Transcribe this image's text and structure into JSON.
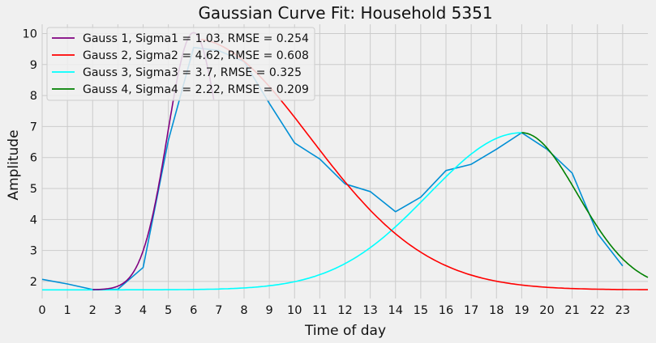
{
  "chart_data": {
    "type": "line",
    "title": "Gaussian Curve Fit: Household 5351",
    "xlabel": "Time of day",
    "ylabel": "Amplitude",
    "xlim": [
      0,
      24
    ],
    "ylim": [
      1.45,
      10.3
    ],
    "xticks": [
      0,
      1,
      2,
      3,
      4,
      5,
      6,
      7,
      8,
      9,
      10,
      11,
      12,
      13,
      14,
      15,
      16,
      17,
      18,
      19,
      20,
      21,
      22,
      23
    ],
    "yticks": [
      2,
      3,
      4,
      5,
      6,
      7,
      8,
      9,
      10
    ],
    "grid": true,
    "legend_position": "top-left",
    "data_series": {
      "name": "",
      "color": "#008fd5",
      "x": [
        0,
        1,
        2,
        3,
        4,
        5,
        6,
        7,
        8,
        9,
        10,
        11,
        12,
        13,
        14,
        15,
        16,
        17,
        18,
        19,
        20,
        21,
        22,
        23
      ],
      "y": [
        2.07,
        1.92,
        1.74,
        1.75,
        2.45,
        6.55,
        9.55,
        9.45,
        9.1,
        7.75,
        6.47,
        5.95,
        5.15,
        4.9,
        4.25,
        4.72,
        5.58,
        5.78,
        6.27,
        6.8,
        6.27,
        5.5,
        3.55,
        2.5
      ]
    },
    "gaussians": [
      {
        "name": "Gauss 1, Sigma1 = 1.03, RMSE = 0.254",
        "color": "#800080",
        "amp": 8.3,
        "mu": 6.0,
        "sigma": 1.03,
        "offset": 1.73,
        "xmin": 2.0,
        "xmax": 6.8
      },
      {
        "name": "Gauss 2, Sigma2 = 4.62, RMSE = 0.608",
        "color": "#ff0000",
        "amp": 8.1,
        "mu": 6.0,
        "sigma": 4.62,
        "offset": 1.73,
        "xmin": 6.3,
        "xmax": 24
      },
      {
        "name": "Gauss 3, Sigma3 = 3.7, RMSE = 0.325",
        "color": "#00ffff",
        "amp": 5.07,
        "mu": 19.0,
        "sigma": 3.7,
        "offset": 1.73,
        "xmin": 0,
        "xmax": 19.0
      },
      {
        "name": "Gauss 4, Sigma4 = 2.22, RMSE = 0.209",
        "color": "#008000",
        "amp": 5.07,
        "mu": 19.0,
        "sigma": 2.22,
        "offset": 1.73,
        "xmin": 19.0,
        "xmax": 24
      }
    ]
  }
}
